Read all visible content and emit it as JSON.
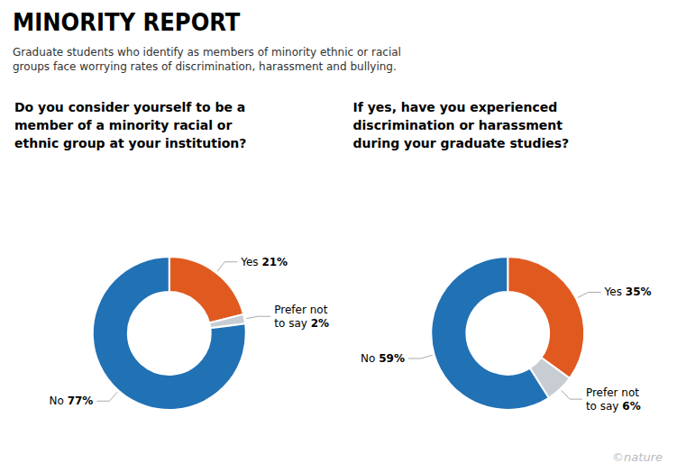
{
  "title": "MINORITY REPORT",
  "subtitle": "Graduate students who identify as members of minority ethnic or racial\ngroups face worrying rates of discrimination, harassment and bullying.",
  "annotations": [
    "©nature"
  ],
  "chart_data": [
    {
      "type": "pie",
      "title": "Do you consider yourself to be a\nmember of a minority racial or\nethnic group at your institution?",
      "categories": [
        "Yes",
        "Prefer not to say",
        "No"
      ],
      "values": [
        21,
        2,
        77
      ],
      "value_labels": [
        "21%",
        "2%",
        "77%"
      ],
      "colors": [
        "#E05A20",
        "#C8CDD4",
        "#2171B5"
      ],
      "data_labels": true
    },
    {
      "type": "pie",
      "title": "If yes, have you experienced\ndiscrimination or harassment\nduring your graduate studies?",
      "categories": [
        "Yes",
        "Prefer not to say",
        "No"
      ],
      "values": [
        35,
        6,
        59
      ],
      "value_labels": [
        "35%",
        "6%",
        "59%"
      ],
      "colors": [
        "#E05A20",
        "#C8CDD4",
        "#2171B5"
      ],
      "data_labels": true
    }
  ]
}
